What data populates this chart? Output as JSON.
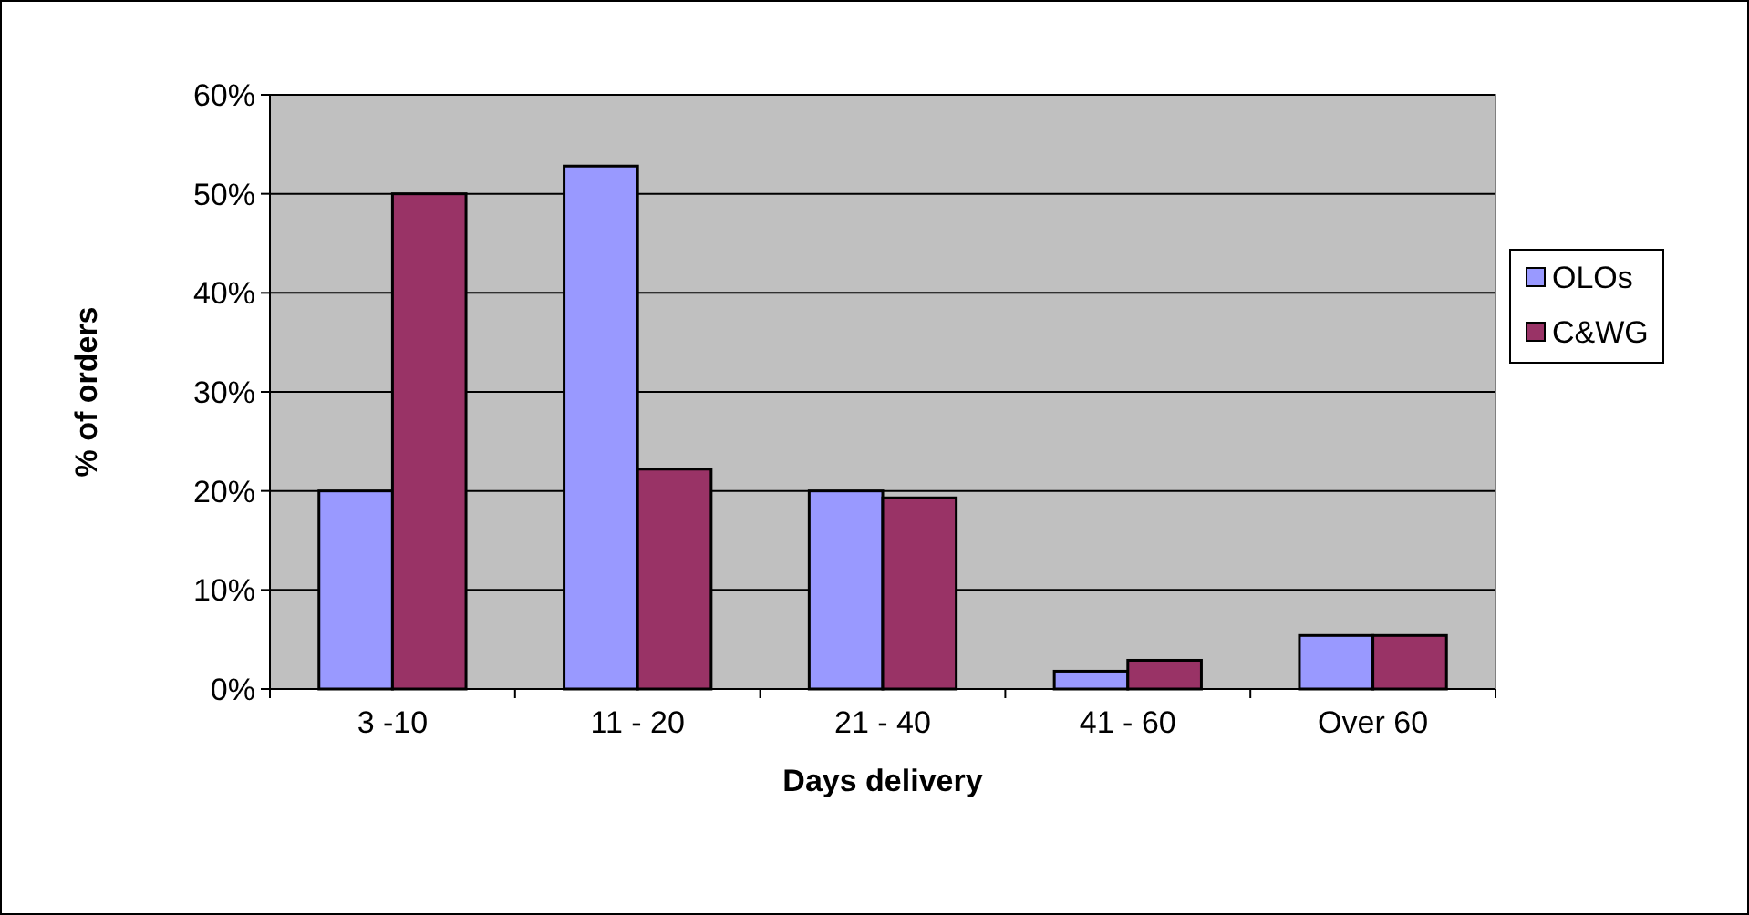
{
  "chart_data": {
    "type": "bar",
    "xlabel": "Days delivery",
    "ylabel": "% of orders",
    "categories": [
      "3 -10",
      "11 - 20",
      "21 - 40",
      "41 - 60",
      "Over 60"
    ],
    "series": [
      {
        "name": "OLOs",
        "color": "#9999ff",
        "values": [
          20,
          52.8,
          20,
          1.8,
          5.4
        ]
      },
      {
        "name": "C&WG",
        "color": "#993366",
        "values": [
          50,
          22.2,
          19.3,
          2.9,
          5.4
        ]
      }
    ],
    "ylim": [
      0,
      60
    ],
    "yticks": [
      {
        "value": 0,
        "label": "0%"
      },
      {
        "value": 10,
        "label": "10%"
      },
      {
        "value": 20,
        "label": "20%"
      },
      {
        "value": 30,
        "label": "30%"
      },
      {
        "value": 40,
        "label": "40%"
      },
      {
        "value": 50,
        "label": "50%"
      },
      {
        "value": 60,
        "label": "60%"
      }
    ],
    "grid": "y",
    "legend": "right"
  }
}
